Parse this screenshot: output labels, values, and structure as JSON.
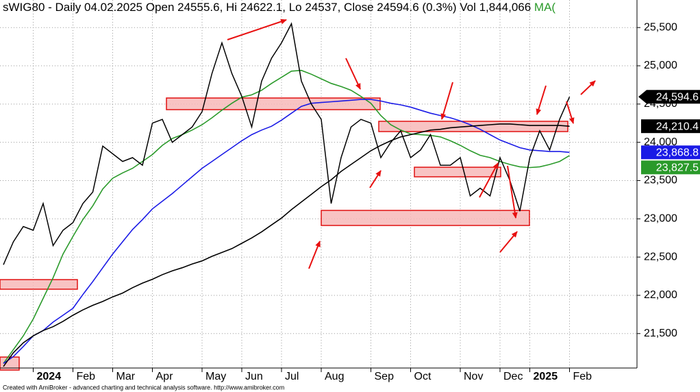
{
  "header": {
    "title": "sWIG80 - Daily 04.02.2025 Open 24555.6, Hi 24622.1, Lo 24537, Close 24594.6 (0.3%) Vol 1,844,066 ",
    "ma_label": "MA("
  },
  "footer": "Created with AmiBroker - advanced charting and technical analysis software. http://www.amibroker.com",
  "chart_data": {
    "type": "line",
    "categories": [
      null,
      null,
      null,
      "2024",
      null,
      null,
      null,
      "Feb",
      null,
      null,
      null,
      "Mar",
      null,
      null,
      null,
      "Apr",
      null,
      null,
      null,
      null,
      "May",
      null,
      null,
      null,
      "Jun",
      null,
      null,
      null,
      "Jul",
      null,
      null,
      null,
      "Aug",
      null,
      null,
      null,
      null,
      "Sep",
      null,
      null,
      null,
      "Oct",
      null,
      null,
      null,
      null,
      "Nov",
      null,
      null,
      null,
      "Dec",
      null,
      null,
      "2025",
      null,
      null,
      null,
      "Feb"
    ],
    "ylim": [
      21050,
      25860
    ],
    "yticks": [
      {
        "value": 21500,
        "label": "21,500"
      },
      {
        "value": 22000,
        "label": "22,000"
      },
      {
        "value": 22500,
        "label": "22,500"
      },
      {
        "value": 23000,
        "label": "23,000"
      },
      {
        "value": 23500,
        "label": "23,500"
      },
      {
        "value": 24000,
        "label": "24,000"
      },
      {
        "value": 24500,
        "label": "24,500"
      },
      {
        "value": 25000,
        "label": "25,000"
      },
      {
        "value": 25500,
        "label": "25,500"
      }
    ],
    "grid": true,
    "series": [
      {
        "color": "#2a9a2a",
        "values": [
          21110,
          21290,
          21470,
          21690,
          21960,
          22230,
          22540,
          22770,
          22990,
          23170,
          23390,
          23530,
          23600,
          23660,
          23750,
          23840,
          23960,
          24050,
          24100,
          24160,
          24230,
          24320,
          24420,
          24510,
          24590,
          24620,
          24680,
          24770,
          24850,
          24930,
          24940,
          24890,
          24830,
          24770,
          24730,
          24680,
          24600,
          24510,
          24350,
          24230,
          24160,
          24110,
          24100,
          24090,
          24070,
          24020,
          23960,
          23890,
          23830,
          23800,
          23750,
          23710,
          23680,
          23670,
          23680,
          23710,
          23750,
          23827.5
        ],
        "value_labels": [
          null,
          null,
          null,
          null,
          null,
          null,
          null,
          null,
          null,
          null,
          null,
          null,
          null,
          null,
          null,
          null,
          null,
          null,
          null,
          null,
          null,
          null,
          null,
          null,
          null,
          null,
          null,
          null,
          null,
          null,
          null,
          null,
          null,
          null,
          null,
          null,
          null,
          null,
          null,
          null,
          null,
          null,
          null,
          null,
          null,
          null,
          null,
          null,
          null,
          null,
          null,
          null,
          null,
          null,
          null,
          null,
          null,
          "23,827.5"
        ]
      },
      {
        "color": "#1a1ae6",
        "values": [
          21110,
          21200,
          21330,
          21470,
          21540,
          21650,
          21740,
          21830,
          22010,
          22180,
          22360,
          22540,
          22700,
          22860,
          22990,
          23130,
          23230,
          23330,
          23440,
          23550,
          23660,
          23750,
          23840,
          23930,
          24020,
          24100,
          24160,
          24210,
          24290,
          24380,
          24470,
          24510,
          24520,
          24530,
          24540,
          24550,
          24560,
          24560,
          24540,
          24510,
          24490,
          24460,
          24420,
          24380,
          24350,
          24320,
          24280,
          24230,
          24170,
          24100,
          24030,
          23980,
          23930,
          23900,
          23890,
          23880,
          23880,
          23868.8
        ],
        "value_labels": [
          null,
          null,
          null,
          null,
          null,
          null,
          null,
          null,
          null,
          null,
          null,
          null,
          null,
          null,
          null,
          null,
          null,
          null,
          null,
          null,
          null,
          null,
          null,
          null,
          null,
          null,
          null,
          null,
          null,
          null,
          null,
          null,
          null,
          null,
          null,
          null,
          null,
          null,
          null,
          null,
          null,
          null,
          null,
          null,
          null,
          null,
          null,
          null,
          null,
          null,
          null,
          null,
          null,
          null,
          null,
          null,
          null,
          "23,868.8"
        ]
      },
      {
        "color": "#000000",
        "values": [
          21070,
          21250,
          21380,
          21470,
          21540,
          21590,
          21660,
          21740,
          21810,
          21870,
          21920,
          21980,
          22030,
          22100,
          22160,
          22210,
          22270,
          22320,
          22360,
          22410,
          22450,
          22510,
          22560,
          22610,
          22680,
          22750,
          22830,
          22920,
          23010,
          23120,
          23220,
          23320,
          23420,
          23510,
          23620,
          23710,
          23800,
          23890,
          23960,
          24020,
          24070,
          24100,
          24130,
          24160,
          24170,
          24190,
          24200,
          24210,
          24220,
          24230,
          24240,
          24240,
          24230,
          24220,
          24220,
          24220,
          24220,
          24210.4
        ],
        "value_labels": [
          null,
          null,
          null,
          null,
          null,
          null,
          null,
          null,
          null,
          null,
          null,
          null,
          null,
          null,
          null,
          null,
          null,
          null,
          null,
          null,
          null,
          null,
          null,
          null,
          null,
          null,
          null,
          null,
          null,
          null,
          null,
          null,
          null,
          null,
          null,
          null,
          null,
          null,
          null,
          null,
          null,
          null,
          null,
          null,
          null,
          null,
          null,
          null,
          null,
          null,
          null,
          null,
          null,
          null,
          null,
          null,
          null,
          "24,210.4"
        ]
      },
      {
        "color": "#000000",
        "values": [
          22400,
          22700,
          22900,
          22850,
          23200,
          22650,
          22850,
          22950,
          23200,
          23350,
          23950,
          23850,
          23750,
          23800,
          23700,
          24250,
          24300,
          24000,
          24100,
          24200,
          24400,
          24900,
          25300,
          24900,
          24600,
          24200,
          24800,
          25100,
          25300,
          25550,
          24800,
          24500,
          24300,
          23200,
          23800,
          24200,
          24300,
          24250,
          23800,
          24000,
          24150,
          23800,
          23900,
          24100,
          23700,
          23700,
          23800,
          23300,
          23400,
          23300,
          23800,
          23500,
          23100,
          23800,
          24150,
          23900,
          24300,
          24594.6
        ],
        "value_labels": [
          null,
          null,
          null,
          null,
          null,
          null,
          null,
          null,
          null,
          null,
          null,
          null,
          null,
          null,
          null,
          null,
          null,
          null,
          null,
          null,
          null,
          null,
          null,
          null,
          null,
          null,
          null,
          null,
          null,
          null,
          null,
          null,
          null,
          null,
          null,
          null,
          null,
          null,
          null,
          null,
          null,
          null,
          null,
          null,
          null,
          null,
          null,
          null,
          null,
          null,
          null,
          null,
          null,
          null,
          null,
          null,
          null,
          "24,594.6"
        ]
      }
    ]
  }
}
